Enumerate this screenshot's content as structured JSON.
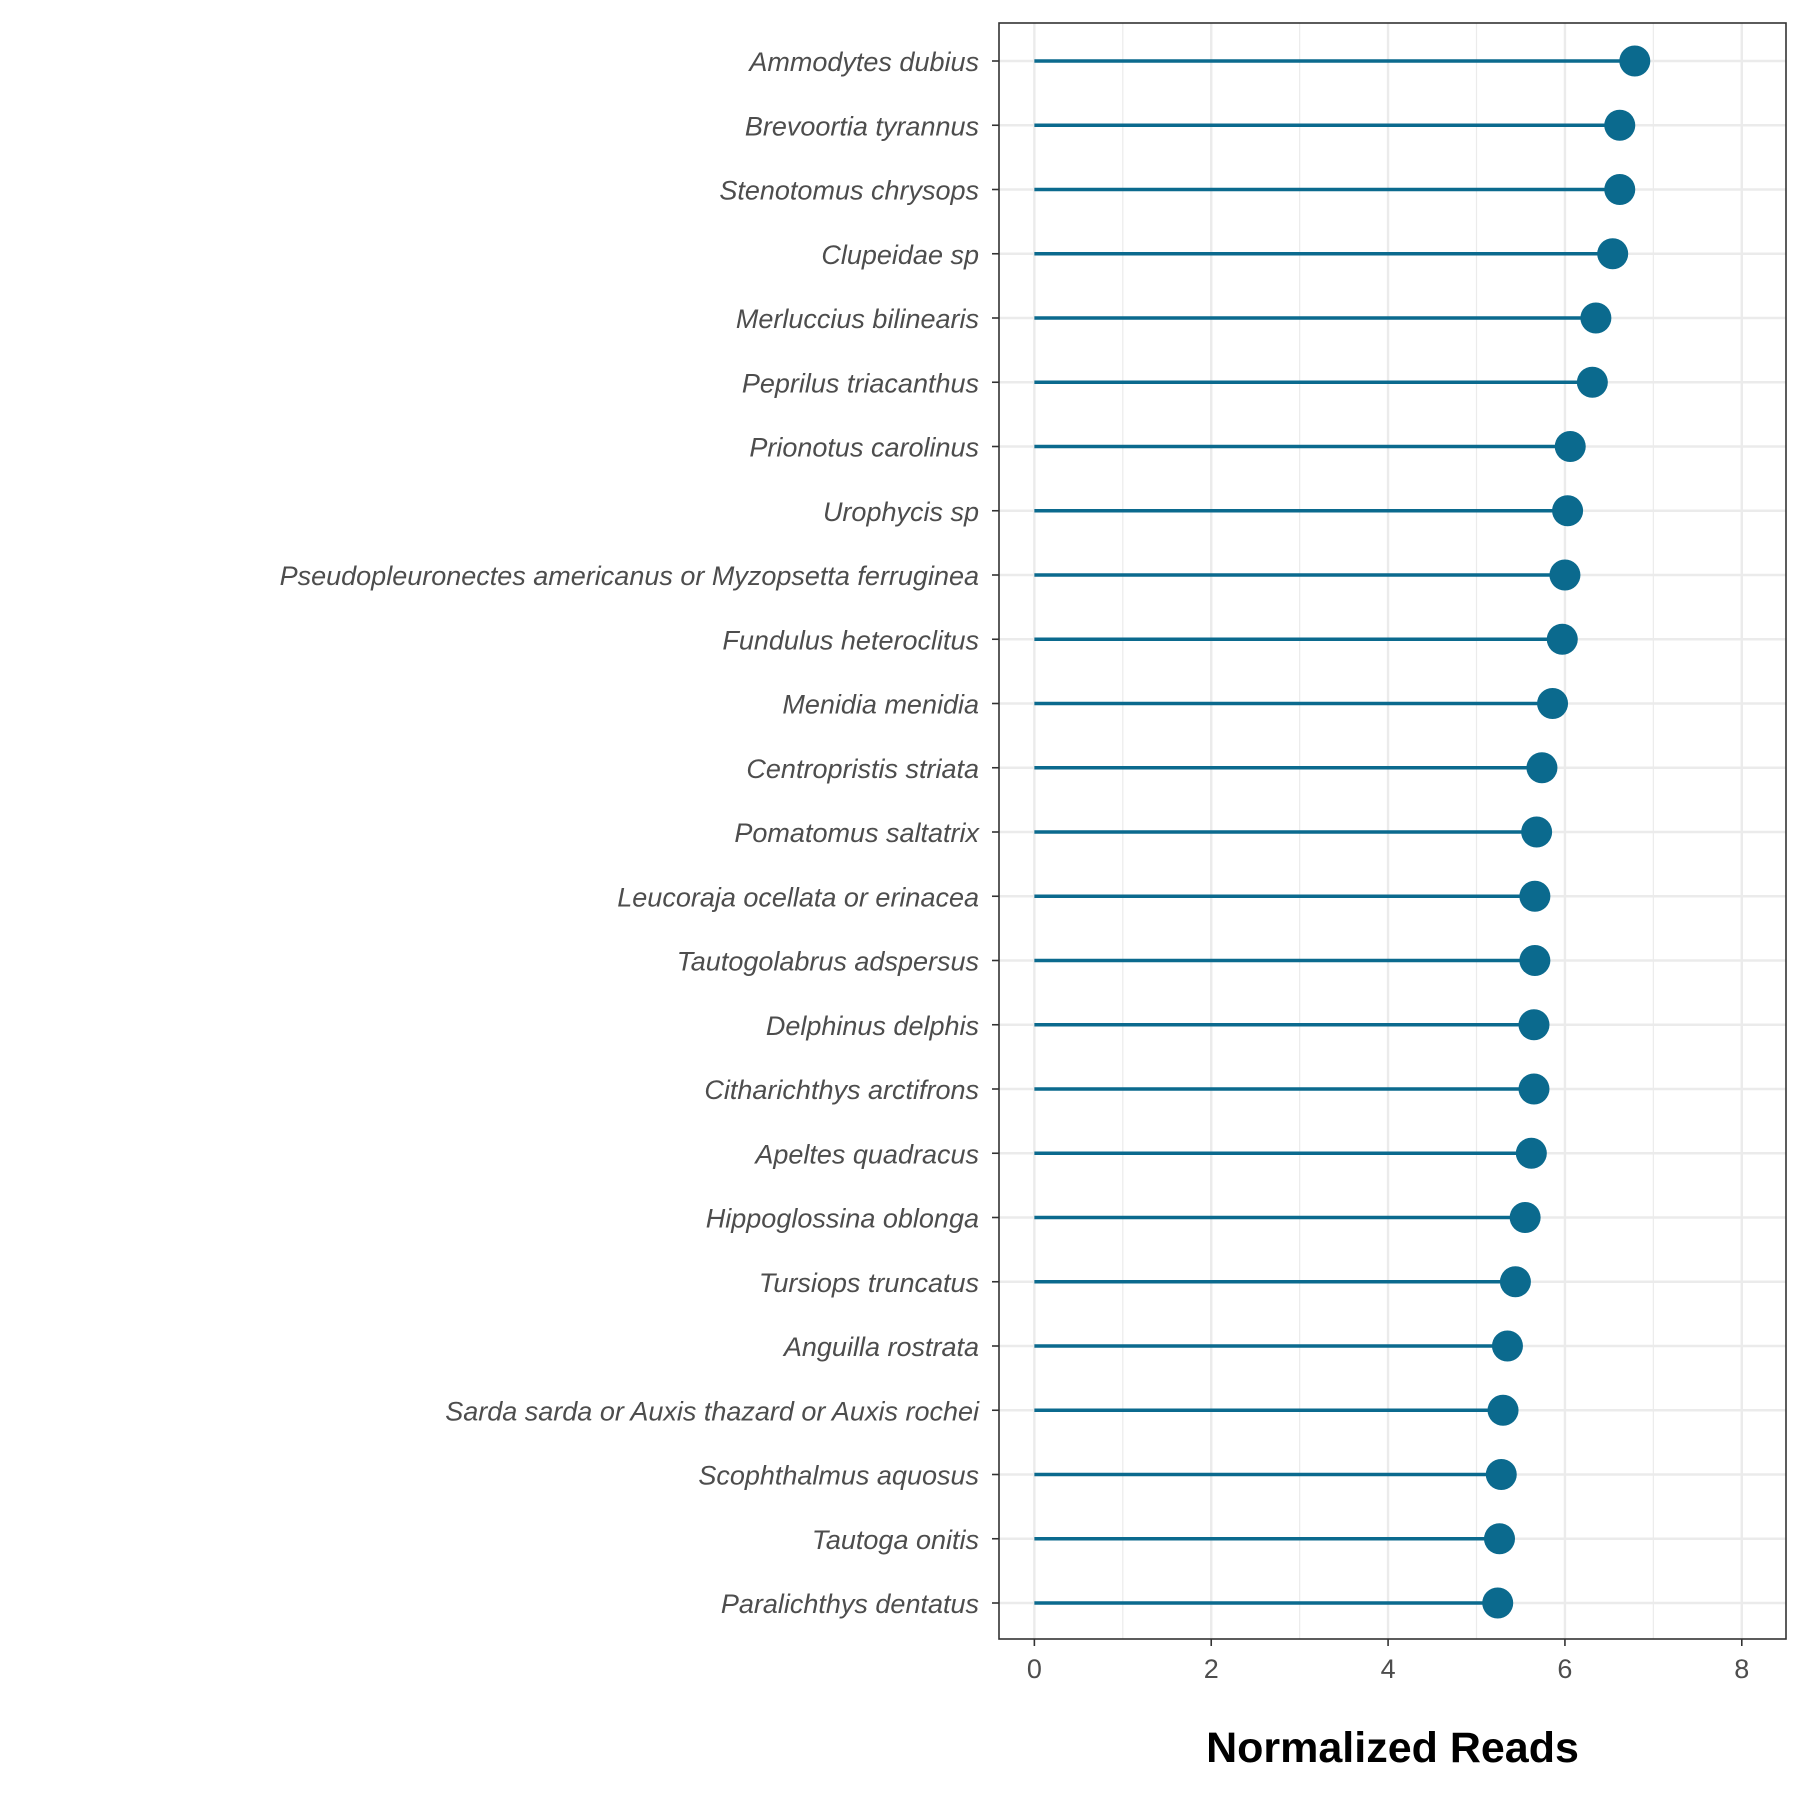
{
  "chart_data": {
    "type": "lollipop",
    "orientation": "horizontal",
    "xlabel": "Normalized Reads",
    "ylabel": "",
    "xlim": [
      -0.4,
      8.5
    ],
    "xticks": [
      0,
      2,
      4,
      6,
      8
    ],
    "grid": true,
    "legend": "none",
    "color": "#0b6a8e",
    "categories": [
      "Ammodytes dubius",
      "Brevoortia tyrannus",
      "Stenotomus chrysops",
      "Clupeidae sp",
      "Merluccius bilinearis",
      "Peprilus triacanthus",
      "Prionotus carolinus",
      "Urophycis sp",
      "Pseudopleuronectes americanus or Myzopsetta ferruginea",
      "Fundulus heteroclitus",
      "Menidia menidia",
      "Centropristis striata",
      "Pomatomus saltatrix",
      "Leucoraja ocellata or erinacea",
      "Tautogolabrus adspersus",
      "Delphinus delphis",
      "Citharichthys arctifrons",
      "Apeltes quadracus",
      "Hippoglossina oblonga",
      "Tursiops truncatus",
      "Anguilla rostrata",
      "Sarda sarda or Auxis thazard or Auxis rochei",
      "Scophthalmus aquosus",
      "Tautoga onitis",
      "Paralichthys dentatus"
    ],
    "values": [
      6.79,
      6.62,
      6.62,
      6.54,
      6.35,
      6.31,
      6.06,
      6.03,
      6.0,
      5.97,
      5.86,
      5.74,
      5.68,
      5.66,
      5.66,
      5.65,
      5.65,
      5.62,
      5.55,
      5.44,
      5.35,
      5.3,
      5.28,
      5.26,
      5.24
    ]
  }
}
